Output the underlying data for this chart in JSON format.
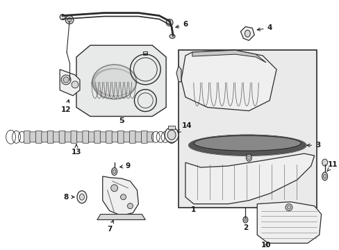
{
  "bg_color": "#ffffff",
  "line_color": "#2a2a2a",
  "label_color": "#1a1a1a",
  "fig_width": 4.89,
  "fig_height": 3.6,
  "dpi": 100,
  "gray_fill": "#d8d8d8",
  "light_fill": "#efefef",
  "mid_fill": "#c8c8c8",
  "box_fill": "#e8e8e8"
}
